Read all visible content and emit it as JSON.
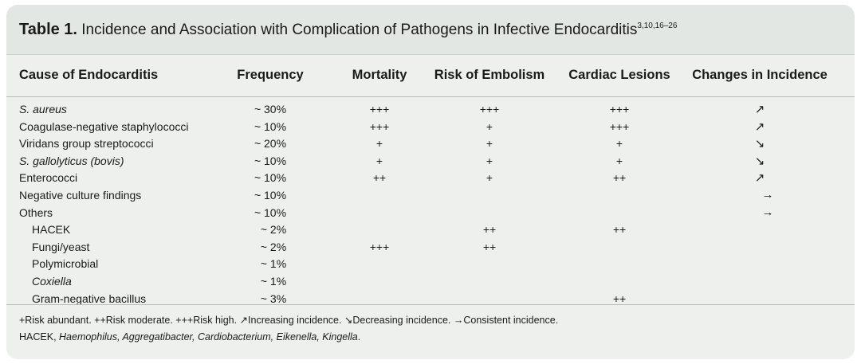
{
  "title": {
    "label": "Table 1.",
    "text": "Incidence and Association with Complication of Pathogens in Infective Endocarditis",
    "refs": "3,10,16–26"
  },
  "columns": [
    "Cause of Endocarditis",
    "Frequency",
    "Mortality",
    "Risk of Embolism",
    "Cardiac Lesions",
    "Changes in Incidence"
  ],
  "rows": [
    {
      "cause": "S. aureus",
      "freq": "~ 30%",
      "mort": "+++",
      "emb": "+++",
      "lesion": "+++",
      "change": "↗"
    },
    {
      "cause": "Coagulase-negative staphylococci",
      "freq": "~ 10%",
      "mort": "+++",
      "emb": "+",
      "lesion": "+++",
      "change": "↗"
    },
    {
      "cause": "Viridans group streptococci",
      "freq": "~ 20%",
      "mort": "+",
      "emb": "+",
      "lesion": "+",
      "change": "↘"
    },
    {
      "cause": "S. gallolyticus (bovis)",
      "freq": "~ 10%",
      "mort": "+",
      "emb": "+",
      "lesion": "+",
      "change": "↘"
    },
    {
      "cause": "Enterococci",
      "freq": "~ 10%",
      "mort": "++",
      "emb": "+",
      "lesion": "++",
      "change": "↗"
    },
    {
      "cause": "Negative culture findings",
      "freq": "~ 10%",
      "mort": "",
      "emb": "",
      "lesion": "",
      "change": "→"
    },
    {
      "cause": "Others",
      "freq": "~ 10%",
      "mort": "",
      "emb": "",
      "lesion": "",
      "change": "→"
    },
    {
      "cause": "HACEK",
      "freq": "~ 2%",
      "mort": "",
      "emb": "++",
      "lesion": "++",
      "change": ""
    },
    {
      "cause": "Fungi/yeast",
      "freq": "~ 2%",
      "mort": "+++",
      "emb": "++",
      "lesion": "",
      "change": ""
    },
    {
      "cause": "Polymicrobial",
      "freq": "~ 1%",
      "mort": "",
      "emb": "",
      "lesion": "",
      "change": ""
    },
    {
      "cause": "Coxiella",
      "freq": "~ 1%",
      "mort": "",
      "emb": "",
      "lesion": "",
      "change": ""
    },
    {
      "cause": "Gram-negative bacillus",
      "freq": "~ 3%",
      "mort": "",
      "emb": "",
      "lesion": "++",
      "change": ""
    }
  ],
  "footnote": {
    "legend": "+Risk abundant. ++Risk moderate. +++Risk high. ↗Increasing incidence. ↘Decreasing incidence. →Consistent incidence.",
    "hacek_label": "HACEK, ",
    "hacek_genera": "Haemophilus, Aggregatibacter, Cardiobacterium, Eikenella, Kingella",
    "hacek_end": "."
  }
}
